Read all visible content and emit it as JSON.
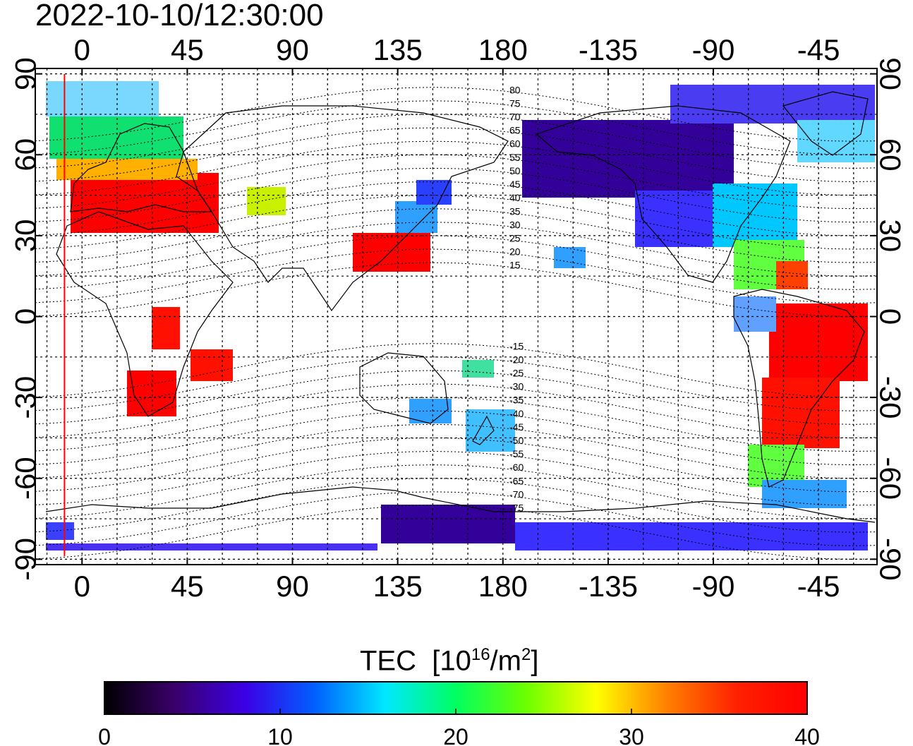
{
  "title": "2022-10-10/12:30:00",
  "map": {
    "top_lon_labels": [
      "0",
      "45",
      "90",
      "135",
      "180",
      "-135",
      "-90",
      "-45"
    ],
    "bottom_lon_labels": [
      "0",
      "45",
      "90",
      "135",
      "180",
      "-135",
      "-90",
      "-45"
    ],
    "left_lat_labels": [
      "90",
      "60",
      "30",
      "0",
      "-30",
      "-60",
      "-90"
    ],
    "right_lat_labels": [
      "90",
      "60",
      "30",
      "0",
      "-30",
      "-60",
      "-90"
    ],
    "lon_ticks": [
      0,
      45,
      90,
      135,
      180,
      225,
      270,
      315
    ],
    "lat_ticks": [
      90,
      60,
      30,
      0,
      -30,
      -60,
      -90
    ],
    "lon_range": [
      -20,
      340
    ],
    "lat_range": [
      -92,
      92
    ],
    "terminator_lon": -7.5,
    "terminator_color": "#ff0000",
    "magnetic_lat_labels": [
      "80",
      "75",
      "70",
      "65",
      "60",
      "55",
      "50",
      "45",
      "40",
      "35",
      "30",
      "25",
      "20",
      "15",
      "-15",
      "-20",
      "-25",
      "-30",
      "-35",
      "-40",
      "-45",
      "-50",
      "-55",
      "-60",
      "-65",
      "-70",
      "-75"
    ]
  },
  "colorbar": {
    "label_main": "TEC",
    "label_unit": "10",
    "label_exp1": "16",
    "label_mid": "/m",
    "label_exp2": "2",
    "tick_labels": [
      "0",
      "10",
      "20",
      "30",
      "40"
    ],
    "range": [
      0,
      40
    ],
    "colors": [
      "#000000",
      "#3a006a",
      "#3b00e6",
      "#0060ff",
      "#00e8ff",
      "#00ff60",
      "#6cff00",
      "#ffff00",
      "#ff8000",
      "#ff2000",
      "#ff0000"
    ]
  }
}
